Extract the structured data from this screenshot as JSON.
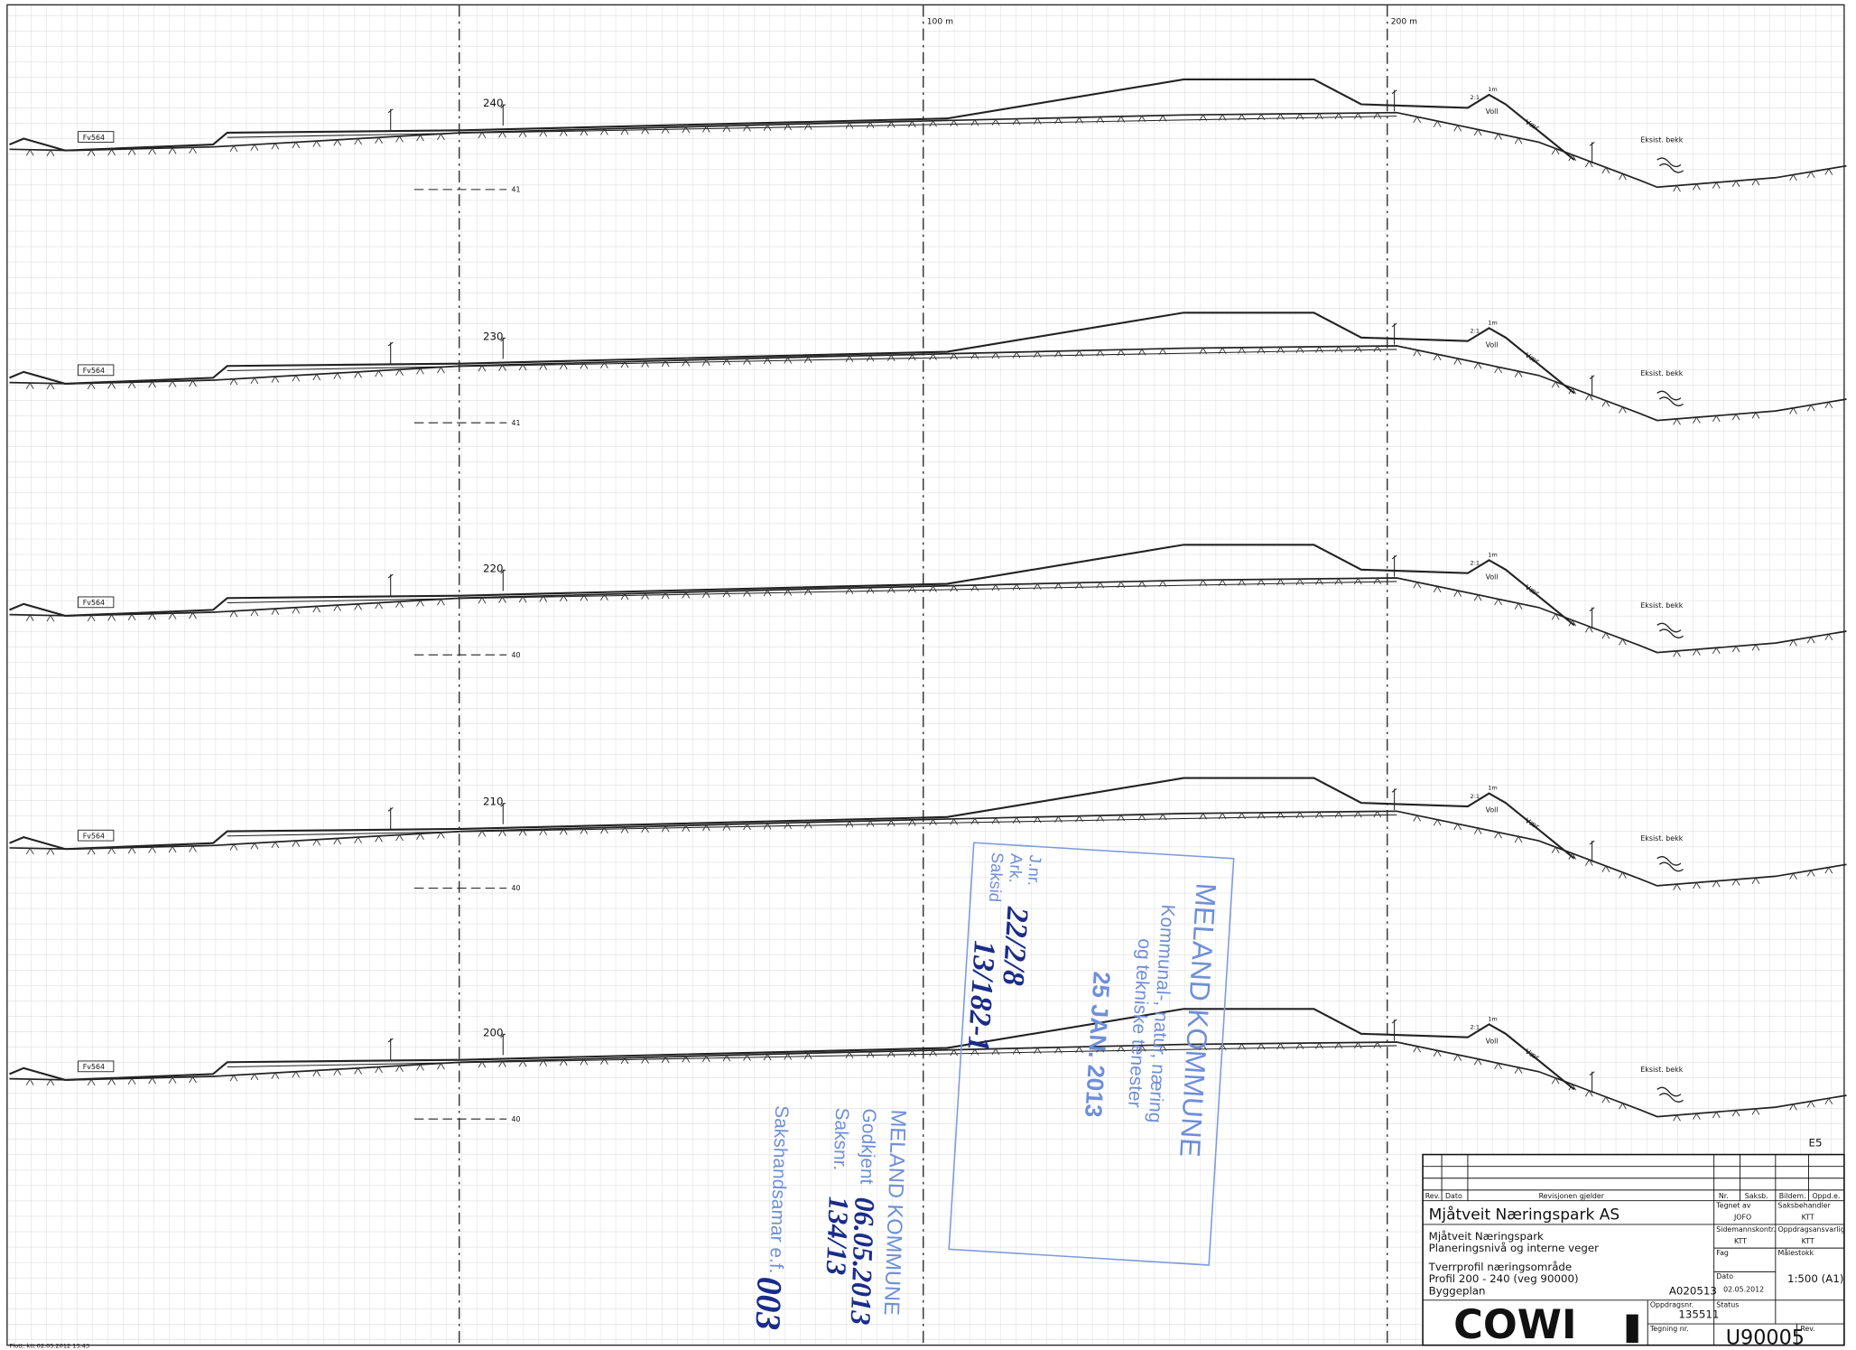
{
  "markers": {
    "first": "100 m",
    "second": "200 m"
  },
  "profiles": [
    {
      "station": "240",
      "road": "Fv564",
      "elevation": "41",
      "slope": "2:1",
      "height": "1m",
      "berm": "Voll",
      "direction": "Vær",
      "creek": "Eksist. bekk"
    },
    {
      "station": "230",
      "road": "Fv564",
      "elevation": "41",
      "slope": "2:1",
      "height": "1m",
      "berm": "Voll",
      "direction": "Vær",
      "creek": "Eksist. bekk"
    },
    {
      "station": "220",
      "road": "Fv564",
      "elevation": "40",
      "slope": "2:1",
      "height": "1m",
      "berm": "Voll",
      "direction": "Vær",
      "creek": "Eksist. bekk"
    },
    {
      "station": "210",
      "road": "Fv564",
      "elevation": "40",
      "slope": "2:1",
      "height": "1m",
      "berm": "Voll",
      "direction": "Vær",
      "creek": "Eksist. bekk"
    },
    {
      "station": "200",
      "road": "Fv564",
      "elevation": "40",
      "slope": "2:1",
      "height": "1m",
      "berm": "Voll",
      "direction": "Vær",
      "creek": "Eksist. bekk"
    }
  ],
  "stamp_received": {
    "title": "MELAND KOMMUNE",
    "dept1": "Kommunal-, natur, næring",
    "dept2": "og tekniske tenester",
    "date": "25 JAN. 2013",
    "jnr": "J.nr.",
    "ark": "Ark.",
    "ark_value": "22/2/8",
    "saksid": "Saksid",
    "saksid_value": "13/182-1"
  },
  "stamp_approved": {
    "title": "MELAND KOMMUNE",
    "approved": "Godkjent",
    "date": "06.05.2013",
    "case_no": "Saksnr.",
    "case_value": "134/13",
    "handler": "Sakshandsamar e.f.",
    "signature": "003"
  },
  "title_block": {
    "sheet": "E5",
    "header": [
      "Rev.",
      "Dato",
      "Revisjonen gjelder",
      "Nr.",
      "Saksb.",
      "Bildem.",
      "Oppd.e."
    ],
    "client": "Mjåtveit Næringspark AS",
    "project1": "Mjåtveit Næringspark",
    "project2": "Planeringsnivå og interne veger",
    "drawing1": "Tverrprofil næringsområde",
    "drawing2": "Profil 200 - 240 (veg 90000)",
    "drawing3": "Byggeplan",
    "code": "A020513",
    "drawn_by_label": "Tegnet av",
    "drawn_by": "JOFO",
    "handler_label": "Saksbehandler",
    "handler": "KTT",
    "checked_label": "Sidemannskontr.",
    "checked": "KTT",
    "responsible_label": "Oppdragsansvarlig",
    "responsible": "KTT",
    "discipline_label": "Fag",
    "scale_label": "Målestokk",
    "date_label": "Dato",
    "date": "02.05.2012",
    "scale": "1:500 (A1)",
    "company": "COWI",
    "project_no_label": "Oppdragsnr.",
    "project_no": "135511",
    "status_label": "Status",
    "drawing_no_label": "Tegning nr.",
    "drawing_no": "U90005",
    "rev_label": "Rev."
  },
  "plot_note": "Plott: ktt 02.05.2012 13:43"
}
